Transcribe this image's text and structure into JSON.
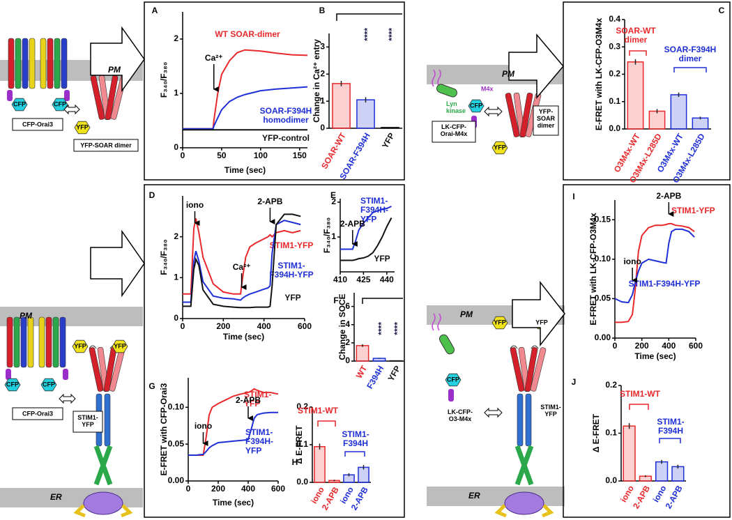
{
  "chart_data": [
    {
      "type": "line",
      "panel": "A",
      "ylabel": "F₃₄₀/F₃₈₀",
      "xlabel": "Time (sec)",
      "x": [
        0,
        20,
        39,
        40,
        45,
        50,
        60,
        70,
        80,
        100,
        120,
        140,
        160
      ],
      "xlim": [
        0,
        160
      ],
      "xticks": [
        0,
        50,
        100,
        150
      ],
      "ylim": [
        0,
        2.5
      ],
      "yticks": [
        0,
        1,
        2
      ],
      "series": [
        {
          "name": "WT SOAR-dimer",
          "color": "#e8282b",
          "values": [
            0.35,
            0.35,
            0.35,
            0.5,
            1.0,
            1.35,
            1.6,
            1.75,
            1.8,
            1.78,
            1.74,
            1.71,
            1.7
          ]
        },
        {
          "name": "SOAR-F394H\nhomodimer",
          "color": "#1f2fd6",
          "values": [
            0.35,
            0.35,
            0.35,
            0.4,
            0.55,
            0.7,
            0.85,
            0.93,
            0.98,
            1.05,
            1.08,
            1.1,
            1.12
          ]
        },
        {
          "name": "YFP-control",
          "color": "#111111",
          "values": [
            0.33,
            0.33,
            0.33,
            0.33,
            0.33,
            0.33,
            0.33,
            0.33,
            0.33,
            0.33,
            0.33,
            0.33,
            0.33
          ]
        }
      ],
      "events": [
        {
          "label": "Ca²⁺",
          "x": 40
        }
      ]
    },
    {
      "type": "bar",
      "panel": "B",
      "ylabel": "Change in Ca²⁺ entry",
      "categories": [
        "SOAR-WT",
        "SOAR-F394H",
        "YFP"
      ],
      "values": [
        1.65,
        1.05,
        0.03
      ],
      "errors": [
        0.1,
        0.1,
        0.01
      ],
      "colors": [
        "#e8282b",
        "#1f2fd6",
        "#111111"
      ],
      "ylim": [
        0,
        3.5
      ],
      "yticks": [
        0,
        1,
        2,
        3
      ],
      "annotations": [
        {
          "text": "****",
          "color": "#1a1a4a"
        },
        {
          "text": "****",
          "color": "#1a1a4a"
        }
      ]
    },
    {
      "type": "bar",
      "panel": "C",
      "ylabel": "E-FRET with LK-CFP-O3M4x",
      "categories": [
        "O3M4x-WT",
        "O3M4x-L285D",
        "O3M4x-WT",
        "O3M4x-L285D"
      ],
      "values": [
        0.245,
        0.065,
        0.125,
        0.04
      ],
      "errors": [
        0.01,
        0.008,
        0.008,
        0.005
      ],
      "colors": [
        "#e8282b",
        "#e8282b",
        "#1f2fd6",
        "#1f2fd6"
      ],
      "ylim": [
        0,
        0.4
      ],
      "yticks": [
        {
          "value": 0,
          "label": "0.0"
        },
        0.1,
        0.2,
        0.3,
        0.4
      ],
      "annotations": [
        {
          "text": "SOAR-WT\ndimer",
          "color": "#e8282b"
        },
        {
          "text": "SOAR-F394H\ndimer",
          "color": "#1f2fd6"
        }
      ]
    },
    {
      "type": "line",
      "panel": "D",
      "ylabel": "F₃₄₀/F₃₈₀",
      "xlabel": "Time (sec)",
      "x": [
        0,
        40,
        55,
        65,
        80,
        100,
        150,
        200,
        250,
        285,
        295,
        310,
        330,
        360,
        400,
        420,
        430,
        440,
        460,
        500,
        540,
        580
      ],
      "xlim": [
        0,
        600
      ],
      "xticks": [
        0,
        200,
        400,
        600
      ],
      "ylim": [
        0,
        3
      ],
      "yticks": [
        0,
        1,
        2
      ],
      "series": [
        {
          "name": "STIM1-YFP",
          "color": "#e8282b",
          "values": [
            0.6,
            0.6,
            2.2,
            2.45,
            2.1,
            1.5,
            0.85,
            0.65,
            0.6,
            0.6,
            1.0,
            1.5,
            1.75,
            1.85,
            1.95,
            2.0,
            2.05,
            2.0,
            2.1,
            2.15,
            2.1,
            2.15
          ]
        },
        {
          "name": "STIM1-\nF394H-YFP",
          "color": "#1f2fd6",
          "values": [
            0.4,
            0.4,
            1.4,
            1.65,
            1.4,
            0.9,
            0.55,
            0.5,
            0.48,
            0.45,
            0.5,
            0.55,
            0.6,
            0.65,
            0.72,
            0.75,
            0.8,
            1.6,
            2.3,
            2.4,
            2.35,
            2.3
          ]
        },
        {
          "name": "YFP",
          "color": "#111111",
          "values": [
            0.3,
            0.3,
            1.2,
            1.45,
            1.3,
            0.7,
            0.35,
            0.3,
            0.28,
            0.27,
            0.27,
            0.27,
            0.27,
            0.28,
            0.28,
            0.28,
            0.3,
            0.8,
            2.3,
            2.55,
            2.55,
            2.5
          ]
        }
      ],
      "events": [
        {
          "label": "iono",
          "x": 60
        },
        {
          "label": "Ca²⁺",
          "x": 290
        },
        {
          "label": "2-APB",
          "x": 430
        }
      ]
    },
    {
      "type": "line",
      "panel": "E",
      "ylabel": "F₃₄₀/F₃₈₀",
      "x": [
        410,
        412,
        414,
        416,
        418,
        420,
        422,
        425,
        428,
        431,
        434,
        437,
        440,
        443
      ],
      "xlim": [
        410,
        445
      ],
      "xticks": [
        410,
        425,
        440
      ],
      "ylim": [
        0,
        2.1
      ],
      "yticks": [
        1,
        2
      ],
      "series": [
        {
          "name": "STIM1-\nF394H-\nYFP",
          "color": "#1f2fd6",
          "values": [
            0.65,
            0.65,
            0.65,
            0.65,
            0.65,
            0.9,
            1.2,
            1.4,
            1.55,
            1.7,
            1.75,
            1.8,
            1.82,
            1.88
          ]
        },
        {
          "name": "YFP",
          "color": "#111111",
          "values": [
            0.33,
            0.33,
            0.33,
            0.33,
            0.33,
            0.35,
            0.38,
            0.4,
            0.45,
            0.55,
            0.75,
            1.0,
            1.3,
            1.55
          ]
        }
      ],
      "events": [
        {
          "label": "2-APB",
          "x": 418
        }
      ]
    },
    {
      "type": "bar",
      "panel": "F",
      "ylabel": "Change in SOCE",
      "categories": [
        "WT",
        "F394H",
        "YFP"
      ],
      "values": [
        1.7,
        0.3,
        0.03
      ],
      "errors": [
        0.15,
        0.05,
        0.01
      ],
      "colors": [
        "#e8282b",
        "#1f2fd6",
        "#111111"
      ],
      "ylim": [
        0,
        7.5
      ],
      "yticks": [
        0,
        2,
        4,
        6
      ],
      "annotations": [
        {
          "text": "****",
          "color": "#1a1a4a"
        },
        {
          "text": "****",
          "color": "#1a1a4a"
        }
      ]
    },
    {
      "type": "line",
      "panel": "G",
      "ylabel": "E-FRET with CFP-Orai3",
      "xlabel": "Time (sec)",
      "x": [
        0,
        50,
        100,
        120,
        140,
        160,
        200,
        250,
        300,
        350,
        400,
        420,
        440,
        460,
        500,
        550,
        600
      ],
      "xlim": [
        0,
        600
      ],
      "xticks": [
        0,
        200,
        400,
        600
      ],
      "ylim": [
        0,
        0.14
      ],
      "yticks": [
        {
          "value": 0,
          "label": "0.00"
        },
        0.05,
        {
          "value": 0.1,
          "label": "0.10"
        }
      ],
      "series": [
        {
          "name": "STIM1-\nYFP",
          "color": "#e8282b",
          "values": [
            0.035,
            0.035,
            0.035,
            0.06,
            0.09,
            0.1,
            0.105,
            0.11,
            0.115,
            0.118,
            0.12,
            0.122,
            0.125,
            0.123,
            0.12,
            0.12,
            0.118
          ]
        },
        {
          "name": "STIM1-\nF394H-\nYFP",
          "color": "#1f2fd6",
          "values": [
            0.035,
            0.035,
            0.036,
            0.04,
            0.045,
            0.048,
            0.052,
            0.053,
            0.054,
            0.055,
            0.056,
            0.07,
            0.085,
            0.09,
            0.092,
            0.093,
            0.093
          ]
        }
      ],
      "events": [
        {
          "label": "iono",
          "x": 100
        },
        {
          "label": "2-APB",
          "x": 400
        }
      ]
    },
    {
      "type": "bar",
      "panel": "H",
      "ylabel": "Δ E-FRET",
      "categories": [
        "iono",
        "2-APB",
        "iono",
        "2-APB"
      ],
      "values": [
        0.095,
        0.005,
        0.02,
        0.04
      ],
      "errors": [
        0.008,
        0.002,
        0.004,
        0.006
      ],
      "colors": [
        "#e8282b",
        "#e8282b",
        "#1f2fd6",
        "#1f2fd6"
      ],
      "ylim": [
        0,
        0.2
      ],
      "yticks": [
        {
          "value": 0,
          "label": "0.0"
        },
        0.1,
        0.2
      ],
      "annotations": [
        {
          "text": "STIM1-WT",
          "color": "#e8282b"
        },
        {
          "text": "STIM1-\nF394H",
          "color": "#1f2fd6"
        }
      ]
    },
    {
      "type": "line",
      "panel": "I",
      "ylabel": "E-FRET with LK-CFP-O3M4x",
      "xlabel": "Time (sec)",
      "x": [
        0,
        50,
        100,
        130,
        150,
        175,
        200,
        250,
        300,
        350,
        380,
        400,
        420,
        450,
        500,
        550,
        590
      ],
      "xlim": [
        0,
        600
      ],
      "xticks": [
        0,
        200,
        400,
        600
      ],
      "ylim": [
        0,
        0.175
      ],
      "yticks": [
        {
          "value": 0,
          "label": "0.00"
        },
        0.05,
        {
          "value": 0.1,
          "label": "0.10"
        },
        0.15
      ],
      "series": [
        {
          "name": "STIM1-YFP",
          "color": "#e8282b",
          "values": [
            0.02,
            0.02,
            0.021,
            0.03,
            0.06,
            0.11,
            0.13,
            0.14,
            0.143,
            0.143,
            0.144,
            0.145,
            0.145,
            0.143,
            0.142,
            0.14,
            0.135
          ]
        },
        {
          "name": "STIM1-F394H-YFP",
          "color": "#1f2fd6",
          "values": [
            0.05,
            0.046,
            0.045,
            0.055,
            0.07,
            0.085,
            0.095,
            0.1,
            0.098,
            0.096,
            0.095,
            0.12,
            0.135,
            0.138,
            0.138,
            0.135,
            0.128
          ]
        }
      ],
      "events": [
        {
          "label": "iono",
          "x": 130
        },
        {
          "label": "2-APB",
          "x": 400
        }
      ]
    },
    {
      "type": "bar",
      "panel": "J",
      "ylabel": "Δ E-FRET",
      "categories": [
        "iono",
        "2-APB",
        "iono",
        "2-APB"
      ],
      "values": [
        0.115,
        0.01,
        0.04,
        0.03
      ],
      "errors": [
        0.006,
        0.002,
        0.004,
        0.004
      ],
      "colors": [
        "#e8282b",
        "#e8282b",
        "#1f2fd6",
        "#1f2fd6"
      ],
      "ylim": [
        0,
        0.2
      ],
      "yticks": [
        {
          "value": 0,
          "label": "0.0"
        },
        0.1,
        0.2
      ],
      "annotations": [
        {
          "text": "STIM1-WT",
          "color": "#e8282b"
        },
        {
          "text": "STIM1-\nF394H",
          "color": "#1f2fd6"
        }
      ]
    }
  ],
  "diagrams": [
    {
      "labels": [
        "PM",
        "CFP",
        "CFP",
        "CFP-Orai3",
        "YFP",
        "YFP-SOAR dimer"
      ]
    },
    {
      "labels": [
        "PM",
        "Lyn\nkinase",
        "M4x",
        "CFP",
        "LK-CFP-\nOrai-M4x",
        "YFP",
        "YFP-\nSOAR\ndimer"
      ]
    },
    {
      "labels": [
        "PM",
        "CFP",
        "CFP",
        "CFP-Orai3",
        "YFP",
        "YFP",
        "STIM1-\nYFP",
        "ER"
      ]
    },
    {
      "labels": [
        "PM",
        "CFP",
        "LK-CFP-\nO3-M4x",
        "YFP",
        "YFP",
        "STIM1-\nYFP",
        "ER"
      ]
    }
  ]
}
